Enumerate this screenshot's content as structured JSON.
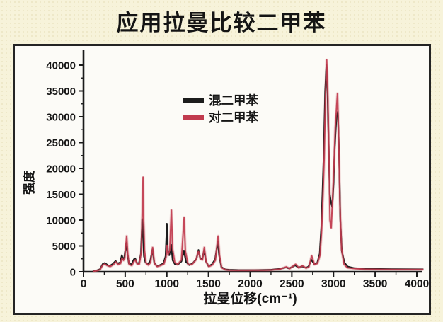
{
  "title": "应用拉曼比较二甲苯",
  "colors": {
    "background": "#f7f3da",
    "panel_background": "#fcfbf7",
    "panel_border": "#242424",
    "axis": "#1a1a1a",
    "series_mixed": "#1c1c1c",
    "series_para": "#c13b4e"
  },
  "chart_data": {
    "type": "line",
    "title": "应用拉曼比较二甲苯",
    "xlabel": "拉曼位移(cm⁻¹)",
    "ylabel": "强度",
    "xlim": [
      0,
      4000
    ],
    "ylim": [
      0,
      41000
    ],
    "grid": false,
    "legend_position": "upper-left-inside",
    "x_ticks": [
      "0",
      "500",
      "1000",
      "1500",
      "2000",
      "2500",
      "3000",
      "3500",
      "4000"
    ],
    "y_ticks": [
      "0",
      "5000",
      "10000",
      "15000",
      "20000",
      "25000",
      "30000",
      "35000",
      "40000"
    ],
    "x_minor_step": 250,
    "y_minor_step": 2500,
    "series": [
      {
        "name": "混二甲苯",
        "color": "#1c1c1c",
        "points": [
          [
            110,
            50
          ],
          [
            160,
            250
          ],
          [
            200,
            500
          ],
          [
            230,
            1500
          ],
          [
            255,
            1700
          ],
          [
            280,
            1400
          ],
          [
            310,
            1100
          ],
          [
            350,
            1500
          ],
          [
            385,
            2100
          ],
          [
            410,
            1600
          ],
          [
            440,
            1800
          ],
          [
            460,
            3200
          ],
          [
            475,
            2400
          ],
          [
            490,
            2800
          ],
          [
            515,
            5600
          ],
          [
            530,
            3200
          ],
          [
            545,
            1600
          ],
          [
            575,
            1400
          ],
          [
            605,
            2400
          ],
          [
            620,
            2600
          ],
          [
            640,
            1700
          ],
          [
            665,
            1600
          ],
          [
            690,
            3500
          ],
          [
            705,
            10200
          ],
          [
            712,
            8500
          ],
          [
            725,
            3000
          ],
          [
            745,
            1800
          ],
          [
            770,
            1500
          ],
          [
            800,
            2000
          ],
          [
            828,
            4300
          ],
          [
            850,
            1700
          ],
          [
            880,
            1100
          ],
          [
            920,
            1300
          ],
          [
            960,
            1600
          ],
          [
            985,
            3000
          ],
          [
            1000,
            9300
          ],
          [
            1012,
            4000
          ],
          [
            1030,
            3200
          ],
          [
            1052,
            5200
          ],
          [
            1070,
            2200
          ],
          [
            1100,
            1400
          ],
          [
            1140,
            1500
          ],
          [
            1175,
            2000
          ],
          [
            1205,
            4100
          ],
          [
            1230,
            1900
          ],
          [
            1270,
            1300
          ],
          [
            1310,
            1600
          ],
          [
            1355,
            2500
          ],
          [
            1380,
            4200
          ],
          [
            1400,
            2600
          ],
          [
            1425,
            2400
          ],
          [
            1448,
            4200
          ],
          [
            1470,
            2000
          ],
          [
            1500,
            1100
          ],
          [
            1540,
            1400
          ],
          [
            1580,
            2400
          ],
          [
            1612,
            5900
          ],
          [
            1630,
            3000
          ],
          [
            1655,
            900
          ],
          [
            1700,
            450
          ],
          [
            1750,
            380
          ],
          [
            1850,
            330
          ],
          [
            1950,
            320
          ],
          [
            2050,
            320
          ],
          [
            2150,
            340
          ],
          [
            2250,
            380
          ],
          [
            2350,
            550
          ],
          [
            2430,
            850
          ],
          [
            2470,
            650
          ],
          [
            2540,
            1250
          ],
          [
            2580,
            800
          ],
          [
            2625,
            1050
          ],
          [
            2670,
            750
          ],
          [
            2700,
            1000
          ],
          [
            2735,
            2300
          ],
          [
            2770,
            1500
          ],
          [
            2805,
            1700
          ],
          [
            2835,
            3500
          ],
          [
            2855,
            9000
          ],
          [
            2870,
            16000
          ],
          [
            2885,
            24000
          ],
          [
            2900,
            35000
          ],
          [
            2915,
            40000
          ],
          [
            2928,
            35000
          ],
          [
            2940,
            26000
          ],
          [
            2955,
            15000
          ],
          [
            2970,
            13500
          ],
          [
            2985,
            12500
          ],
          [
            3000,
            17000
          ],
          [
            3015,
            24000
          ],
          [
            3035,
            30000
          ],
          [
            3052,
            31000
          ],
          [
            3068,
            22000
          ],
          [
            3082,
            10000
          ],
          [
            3100,
            4000
          ],
          [
            3130,
            1800
          ],
          [
            3170,
            1000
          ],
          [
            3250,
            700
          ],
          [
            3350,
            600
          ],
          [
            3500,
            550
          ],
          [
            3700,
            500
          ],
          [
            3900,
            480
          ],
          [
            4080,
            470
          ]
        ]
      },
      {
        "name": "对二甲苯",
        "color": "#c13b4e",
        "points": [
          [
            110,
            40
          ],
          [
            160,
            200
          ],
          [
            200,
            420
          ],
          [
            230,
            1300
          ],
          [
            255,
            1500
          ],
          [
            285,
            1200
          ],
          [
            320,
            1000
          ],
          [
            360,
            1400
          ],
          [
            388,
            1900
          ],
          [
            415,
            1400
          ],
          [
            445,
            1600
          ],
          [
            462,
            2700
          ],
          [
            480,
            2200
          ],
          [
            495,
            2600
          ],
          [
            518,
            6900
          ],
          [
            532,
            3400
          ],
          [
            548,
            1400
          ],
          [
            580,
            1200
          ],
          [
            610,
            2100
          ],
          [
            622,
            2300
          ],
          [
            645,
            1500
          ],
          [
            670,
            1500
          ],
          [
            695,
            4000
          ],
          [
            708,
            14000
          ],
          [
            715,
            18300
          ],
          [
            722,
            10000
          ],
          [
            732,
            4200
          ],
          [
            750,
            1700
          ],
          [
            778,
            1300
          ],
          [
            805,
            1800
          ],
          [
            830,
            4700
          ],
          [
            852,
            1600
          ],
          [
            885,
            1000
          ],
          [
            925,
            1200
          ],
          [
            965,
            1500
          ],
          [
            990,
            2800
          ],
          [
            1002,
            5100
          ],
          [
            1015,
            3200
          ],
          [
            1035,
            4200
          ],
          [
            1055,
            11900
          ],
          [
            1068,
            4500
          ],
          [
            1095,
            1800
          ],
          [
            1130,
            1400
          ],
          [
            1175,
            2300
          ],
          [
            1208,
            10500
          ],
          [
            1222,
            4000
          ],
          [
            1255,
            1400
          ],
          [
            1300,
            1400
          ],
          [
            1350,
            2300
          ],
          [
            1380,
            4000
          ],
          [
            1402,
            2500
          ],
          [
            1428,
            2300
          ],
          [
            1450,
            4700
          ],
          [
            1472,
            1900
          ],
          [
            1505,
            1000
          ],
          [
            1545,
            1300
          ],
          [
            1582,
            2200
          ],
          [
            1615,
            6900
          ],
          [
            1632,
            3200
          ],
          [
            1658,
            800
          ],
          [
            1705,
            380
          ],
          [
            1760,
            320
          ],
          [
            1860,
            290
          ],
          [
            1960,
            290
          ],
          [
            2060,
            300
          ],
          [
            2160,
            320
          ],
          [
            2260,
            360
          ],
          [
            2360,
            520
          ],
          [
            2435,
            950
          ],
          [
            2475,
            600
          ],
          [
            2545,
            1450
          ],
          [
            2585,
            750
          ],
          [
            2628,
            1150
          ],
          [
            2672,
            700
          ],
          [
            2705,
            950
          ],
          [
            2738,
            3100
          ],
          [
            2772,
            1400
          ],
          [
            2808,
            1600
          ],
          [
            2838,
            3200
          ],
          [
            2858,
            8000
          ],
          [
            2872,
            14000
          ],
          [
            2888,
            22000
          ],
          [
            2902,
            33000
          ],
          [
            2918,
            41000
          ],
          [
            2930,
            36000
          ],
          [
            2944,
            24000
          ],
          [
            2958,
            10000
          ],
          [
            2972,
            8500
          ],
          [
            2988,
            13500
          ],
          [
            3005,
            20000
          ],
          [
            3022,
            28000
          ],
          [
            3048,
            34500
          ],
          [
            3062,
            26000
          ],
          [
            3078,
            13000
          ],
          [
            3096,
            4500
          ],
          [
            3125,
            1500
          ],
          [
            3165,
            800
          ],
          [
            3260,
            600
          ],
          [
            3380,
            500
          ],
          [
            3550,
            460
          ],
          [
            3750,
            430
          ],
          [
            3950,
            420
          ],
          [
            4080,
            420
          ]
        ]
      }
    ]
  }
}
